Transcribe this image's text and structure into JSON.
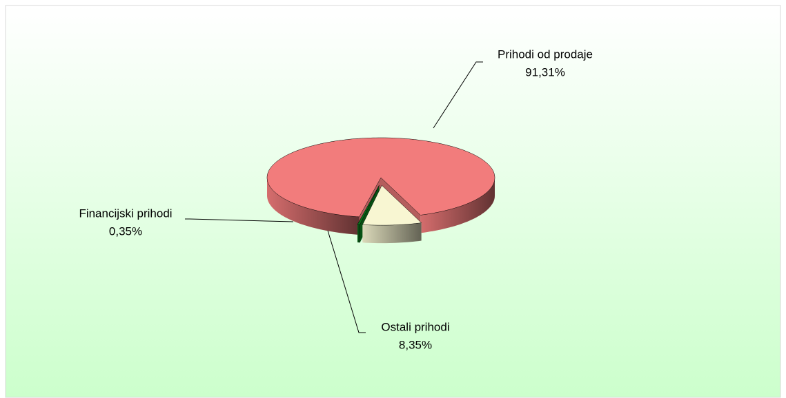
{
  "chart_data": {
    "type": "pie",
    "categories": [
      "Prihodi od prodaje",
      "Ostali prihodi",
      "Financijski prihodi"
    ],
    "values": [
      91.31,
      8.35,
      0.35
    ],
    "value_labels": [
      "91,31%",
      "8,35%",
      "0,35%"
    ],
    "colors": [
      "#f27c7c",
      "#f8f6d2",
      "#0a6e1a"
    ]
  }
}
